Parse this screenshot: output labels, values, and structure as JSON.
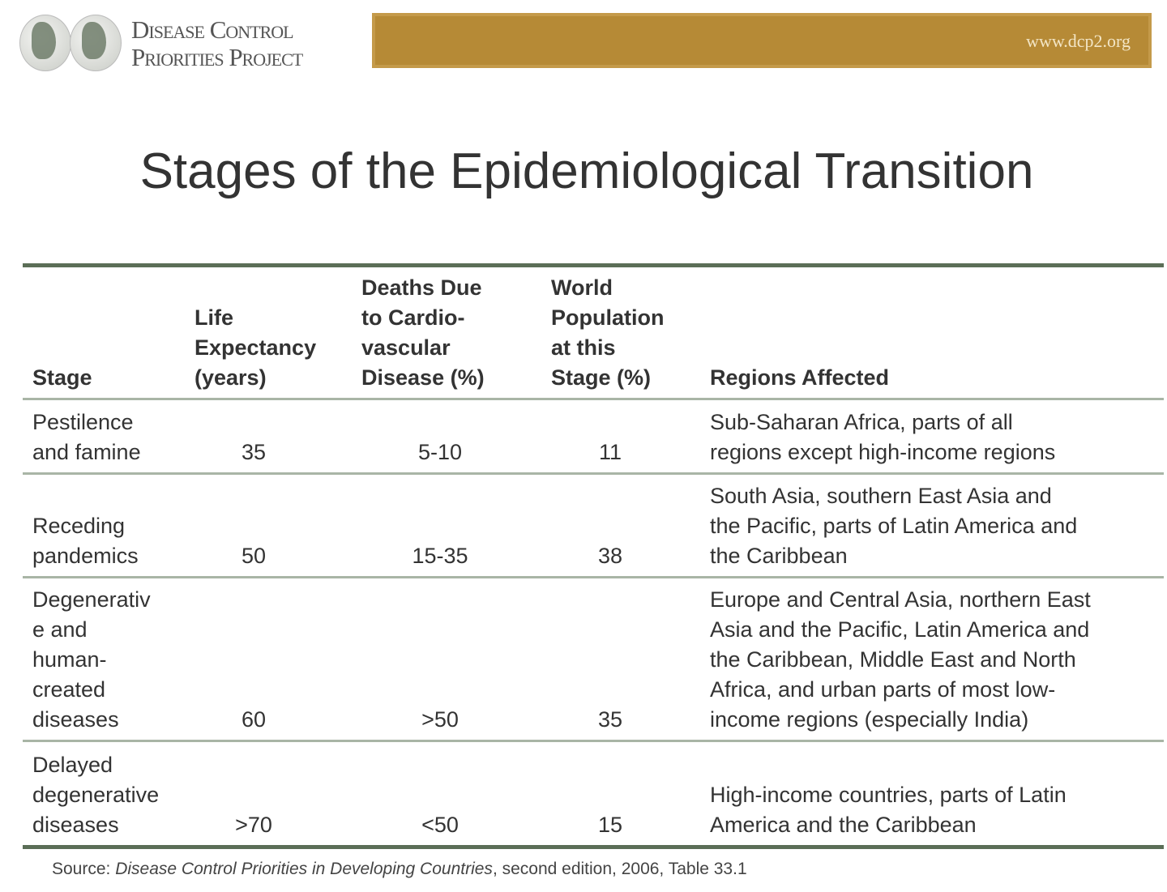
{
  "header": {
    "logo_text_line1": "Disease Control",
    "logo_text_line2": "Priorities Project",
    "url": "www.dcp2.org",
    "banner_color": "#b68a36"
  },
  "title": "Stages of the Epidemiological Transition",
  "table": {
    "columns": [
      "Stage",
      "Life\nExpectancy\n(years)",
      "Deaths Due\nto Cardio-\nvascular\nDisease (%)",
      "World\nPopulation\nat this\nStage (%)",
      "Regions Affected"
    ],
    "rows": [
      {
        "stage": "Pestilence\nand famine",
        "life": "35",
        "deaths": "5-10",
        "population": "11",
        "regions": "Sub-Saharan Africa, parts of all\nregions except high-income regions"
      },
      {
        "stage": "Receding\npandemics",
        "life": "50",
        "deaths": "15-35",
        "population": "38",
        "regions": "South Asia, southern East Asia and\nthe Pacific, parts of Latin America and\nthe Caribbean"
      },
      {
        "stage": "Degenerativ\ne and\nhuman-\ncreated\ndiseases",
        "life": "60",
        "deaths": ">50",
        "population": "35",
        "regions": "Europe and Central Asia, northern East\nAsia and the Pacific, Latin America and\nthe Caribbean, Middle East and North\nAfrica, and urban parts of most low-\nincome regions (especially India)"
      },
      {
        "stage": "Delayed\ndegenerative\ndiseases",
        "life": ">70",
        "deaths": "<50",
        "population": "15",
        "regions": "High-income countries, parts of Latin\nAmerica and the Caribbean"
      }
    ],
    "rule_color": "#5b6e57"
  },
  "source": {
    "prefix": "Source: ",
    "work": "Disease Control Priorities in Developing Countries",
    "suffix": ", second edition, 2006, Table 33.1"
  }
}
